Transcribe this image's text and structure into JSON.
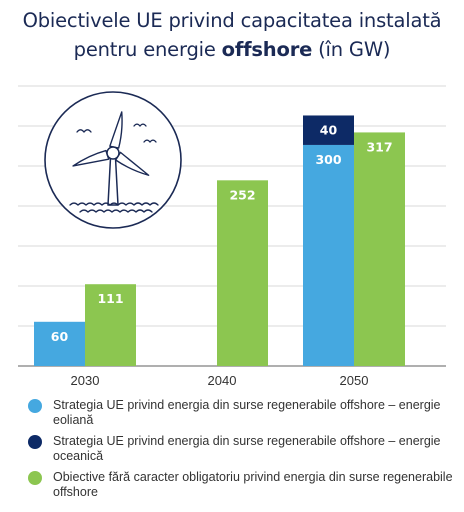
{
  "header": {
    "title_line1": "Obiectivele UE privind capacitatea instalată",
    "title_line2_prefix": "pentru energie ",
    "title_line2_bold": "offshore",
    "title_line2_suffix": " (în GW)"
  },
  "colors": {
    "light_blue": "#45a8e0",
    "dark_navy": "#0d2a66",
    "green": "#8cc650",
    "grid": "#d9d9d9",
    "icon": "#1b2a55"
  },
  "icon": "wind-turbine-icon",
  "chart_data": {
    "type": "bar",
    "stacked": true,
    "categories": [
      "2030",
      "2040",
      "2050"
    ],
    "ylim": [
      0,
      380
    ],
    "grid": true,
    "legend_position": "bottom",
    "series": [
      {
        "name": "Strategia UE privind energia din surse regenerabile offshore – energie eoliană",
        "color": "#45a8e0",
        "group": "strategy",
        "values": [
          60,
          null,
          300
        ],
        "labels": [
          "60",
          null,
          "300"
        ]
      },
      {
        "name": "Strategia UE privind energia din surse regenerabile offshore – energie oceanică",
        "color": "#0d2a66",
        "group": "strategy",
        "values": [
          null,
          null,
          40
        ],
        "labels": [
          null,
          null,
          "40"
        ]
      },
      {
        "name": "Obiective fără caracter obligatoriu privind energia din surse regenerabile offshore",
        "color": "#8cc650",
        "group": "non-binding",
        "values": [
          111,
          252,
          317
        ],
        "labels": [
          "111",
          "252",
          "317"
        ]
      }
    ]
  }
}
